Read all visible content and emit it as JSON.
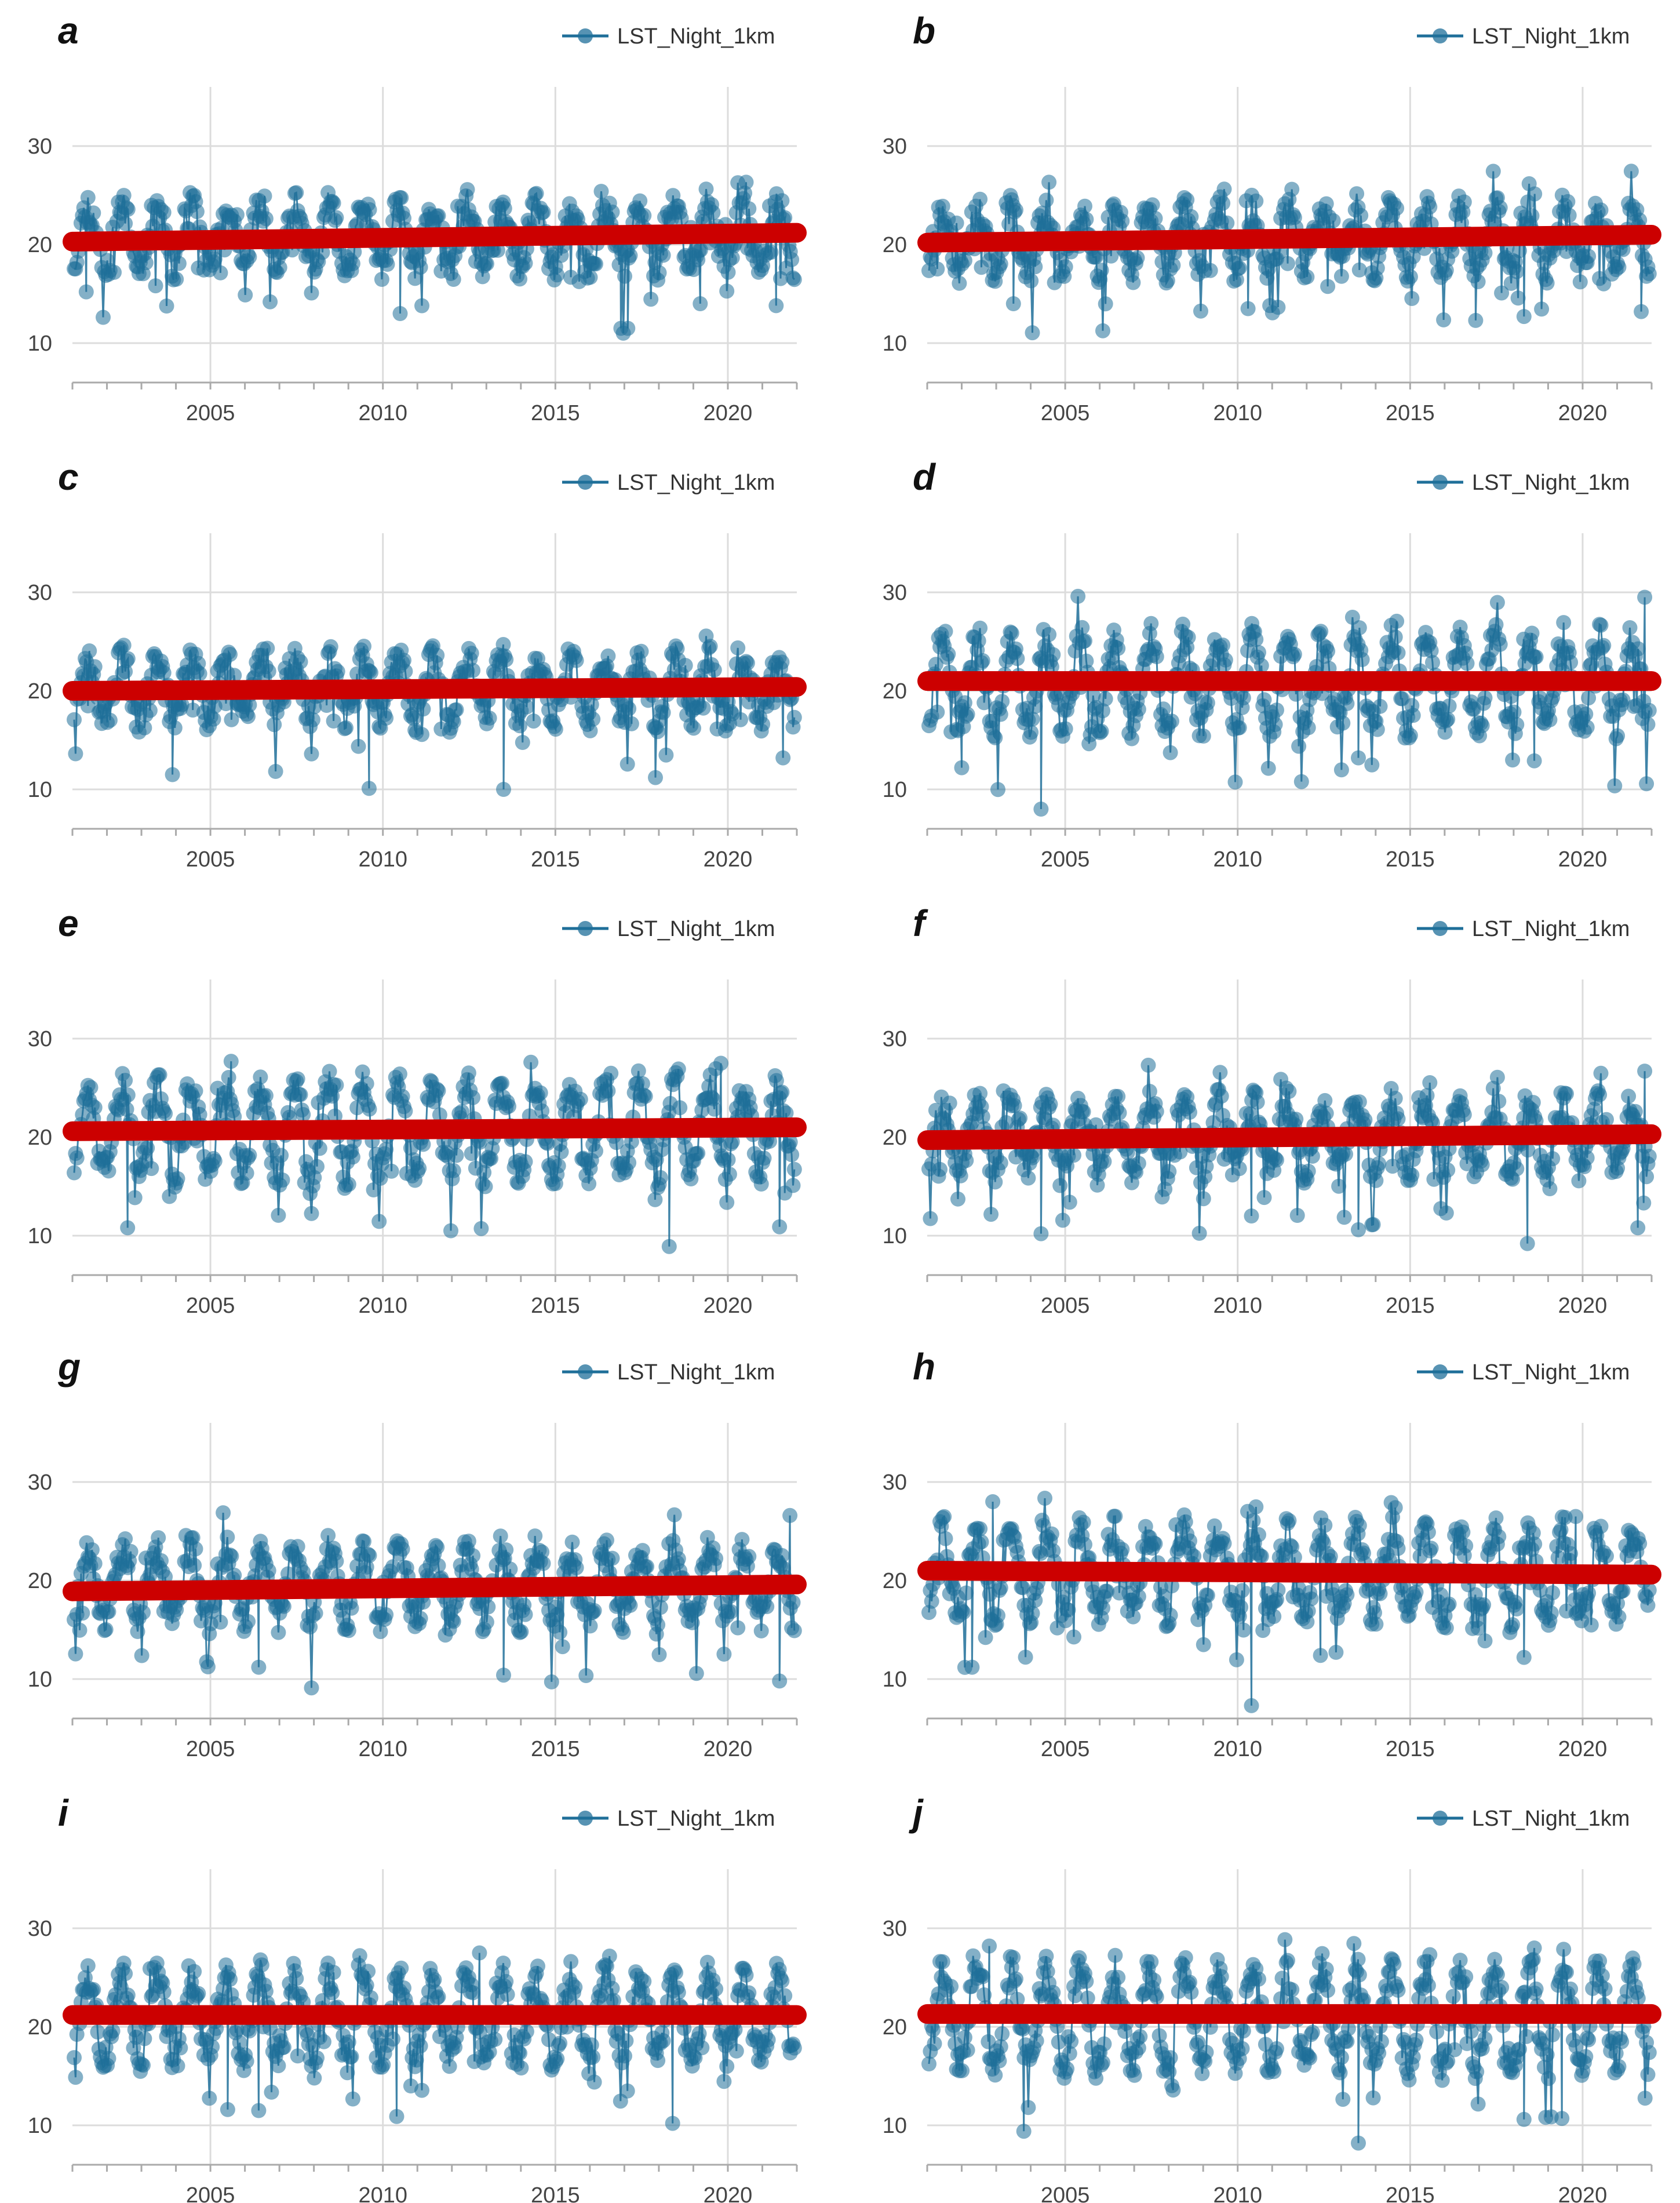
{
  "figure": {
    "colors": {
      "series": "#1f6f99",
      "trend": "#cc0000",
      "grid": "#dcdcdc",
      "axis": "#aaaaaa",
      "text": "#444444"
    }
  },
  "chart_data": [
    {
      "panel": "a",
      "type": "line",
      "series_name": "LST_Night_1km",
      "legend": "top-right",
      "x_ticks": [
        2005,
        2010,
        2015,
        2020
      ],
      "y_ticks": [
        10,
        20,
        30
      ],
      "xlim": [
        2001,
        2022
      ],
      "ylim": [
        6,
        36
      ],
      "baseline": 20.8,
      "amplitude": 3.0,
      "seed": 11,
      "trend": {
        "x": [
          2001,
          2022
        ],
        "y": [
          20.3,
          21.2
        ]
      },
      "outliers": [
        [
          2001.4,
          15.2
        ],
        [
          2010.5,
          13.0
        ],
        [
          2016.9,
          11.5
        ],
        [
          2017.1,
          11.5
        ],
        [
          2019.2,
          14.0
        ],
        [
          2021.4,
          13.8
        ]
      ]
    },
    {
      "panel": "b",
      "type": "line",
      "series_name": "LST_Night_1km",
      "legend": "top-right",
      "x_ticks": [
        2005,
        2010,
        2015,
        2020
      ],
      "y_ticks": [
        10,
        20,
        30
      ],
      "xlim": [
        2001,
        2022
      ],
      "ylim": [
        6,
        36
      ],
      "baseline": 20.6,
      "amplitude": 3.0,
      "seed": 23,
      "trend": {
        "x": [
          2001,
          2022
        ],
        "y": [
          20.2,
          21.0
        ]
      },
      "outliers": [
        [
          2003.5,
          14.0
        ],
        [
          2010.3,
          13.5
        ],
        [
          2016.9,
          12.3
        ],
        [
          2018.3,
          12.7
        ],
        [
          2021.7,
          13.2
        ]
      ]
    },
    {
      "panel": "c",
      "type": "line",
      "series_name": "LST_Night_1km",
      "legend": "top-right",
      "x_ticks": [
        2005,
        2010,
        2015,
        2020
      ],
      "y_ticks": [
        10,
        20,
        30
      ],
      "xlim": [
        2001,
        2022
      ],
      "ylim": [
        6,
        36
      ],
      "baseline": 20.3,
      "amplitude": 3.0,
      "seed": 37,
      "trend": {
        "x": [
          2001,
          2022
        ],
        "y": [
          20.0,
          20.4
        ]
      },
      "outliers": [
        [
          2003.9,
          11.5
        ],
        [
          2009.6,
          10.1
        ],
        [
          2013.5,
          10.0
        ],
        [
          2017.9,
          11.2
        ],
        [
          2021.6,
          13.2
        ]
      ]
    },
    {
      "panel": "d",
      "type": "line",
      "series_name": "LST_Night_1km",
      "legend": "top-right",
      "x_ticks": [
        2005,
        2010,
        2015,
        2020
      ],
      "y_ticks": [
        10,
        20,
        30
      ],
      "xlim": [
        2001,
        2022
      ],
      "ylim": [
        6,
        36
      ],
      "baseline": 20.9,
      "amplitude": 4.5,
      "seed": 41,
      "trend": {
        "x": [
          2001,
          2022
        ],
        "y": [
          21.0,
          21.0
        ]
      },
      "outliers": [
        [
          2004.3,
          8.0
        ],
        [
          2002.0,
          12.2
        ],
        [
          2013.5,
          13.2
        ],
        [
          2018.6,
          12.9
        ],
        [
          2021.8,
          29.5
        ]
      ]
    },
    {
      "panel": "e",
      "type": "line",
      "series_name": "LST_Night_1km",
      "legend": "top-right",
      "x_ticks": [
        2005,
        2010,
        2015,
        2020
      ],
      "y_ticks": [
        10,
        20,
        30
      ],
      "xlim": [
        2001,
        2022
      ],
      "ylim": [
        6,
        36
      ],
      "baseline": 20.8,
      "amplitude": 4.5,
      "seed": 53,
      "trend": {
        "x": [
          2001,
          2022
        ],
        "y": [
          20.6,
          21.0
        ]
      },
      "outliers": [
        [
          2002.6,
          10.8
        ],
        [
          2018.3,
          8.9
        ],
        [
          2021.5,
          10.9
        ],
        [
          2005.6,
          27.7
        ],
        [
          2019.8,
          27.5
        ]
      ]
    },
    {
      "panel": "f",
      "type": "line",
      "series_name": "LST_Night_1km",
      "legend": "top-right",
      "x_ticks": [
        2005,
        2010,
        2015,
        2020
      ],
      "y_ticks": [
        10,
        20,
        30
      ],
      "xlim": [
        2001,
        2022
      ],
      "ylim": [
        6,
        36
      ],
      "baseline": 20.2,
      "amplitude": 3.3,
      "seed": 67,
      "trend": {
        "x": [
          2001,
          2022
        ],
        "y": [
          19.7,
          20.3
        ]
      },
      "outliers": [
        [
          2004.3,
          10.2
        ],
        [
          2010.4,
          12.0
        ],
        [
          2013.5,
          10.6
        ],
        [
          2018.4,
          9.2
        ],
        [
          2021.6,
          10.8
        ],
        [
          2021.8,
          26.7
        ]
      ]
    },
    {
      "panel": "g",
      "type": "line",
      "series_name": "LST_Night_1km",
      "legend": "top-right",
      "x_ticks": [
        2005,
        2010,
        2015,
        2020
      ],
      "y_ticks": [
        10,
        20,
        30
      ],
      "xlim": [
        2001,
        2022
      ],
      "ylim": [
        6,
        36
      ],
      "baseline": 19.6,
      "amplitude": 3.5,
      "seed": 79,
      "trend": {
        "x": [
          2001,
          2022
        ],
        "y": [
          18.9,
          19.6
        ]
      },
      "outliers": [
        [
          2006.4,
          11.2
        ],
        [
          2013.5,
          10.4
        ],
        [
          2021.5,
          9.8
        ],
        [
          2021.8,
          26.6
        ]
      ]
    },
    {
      "panel": "h",
      "type": "line",
      "series_name": "LST_Night_1km",
      "legend": "top-right",
      "x_ticks": [
        2005,
        2010,
        2015,
        2020
      ],
      "y_ticks": [
        10,
        20,
        30
      ],
      "xlim": [
        2001,
        2022
      ],
      "ylim": [
        6,
        36
      ],
      "baseline": 20.9,
      "amplitude": 4.2,
      "seed": 83,
      "trend": {
        "x": [
          2001,
          2022
        ],
        "y": [
          21.0,
          20.6
        ]
      },
      "outliers": [
        [
          2010.4,
          7.3
        ],
        [
          2002.3,
          11.2
        ],
        [
          2012.4,
          12.4
        ],
        [
          2018.3,
          12.2
        ],
        [
          2002.9,
          28.0
        ],
        [
          2019.8,
          26.5
        ]
      ]
    },
    {
      "panel": "i",
      "type": "line",
      "series_name": "LST_Night_1km",
      "legend": "top-right",
      "x_ticks": [
        2005,
        2010,
        2015,
        2020
      ],
      "y_ticks": [
        10,
        20,
        30
      ],
      "xlim": [
        2001,
        2022
      ],
      "ylim": [
        6,
        36
      ],
      "baseline": 21.0,
      "amplitude": 4.2,
      "seed": 97,
      "trend": {
        "x": [
          2001,
          2022
        ],
        "y": [
          21.2,
          21.2
        ]
      },
      "outliers": [
        [
          2010.4,
          10.9
        ],
        [
          2018.4,
          10.2
        ],
        [
          2005.5,
          11.6
        ],
        [
          2006.4,
          11.5
        ],
        [
          2012.8,
          27.5
        ]
      ]
    },
    {
      "panel": "j",
      "type": "line",
      "series_name": "LST_Night_1km",
      "legend": "top-right",
      "x_ticks": [
        2005,
        2010,
        2015,
        2020
      ],
      "y_ticks": [
        10,
        20,
        30
      ],
      "xlim": [
        2001,
        2022
      ],
      "ylim": [
        6,
        36
      ],
      "baseline": 21.0,
      "amplitude": 5.0,
      "seed": 101,
      "trend": {
        "x": [
          2001,
          2022
        ],
        "y": [
          21.3,
          21.3
        ]
      },
      "outliers": [
        [
          2013.5,
          8.2
        ],
        [
          2003.8,
          9.4
        ],
        [
          2018.3,
          10.6
        ],
        [
          2019.4,
          10.7
        ],
        [
          2002.8,
          28.2
        ],
        [
          2018.6,
          28.0
        ]
      ]
    }
  ]
}
